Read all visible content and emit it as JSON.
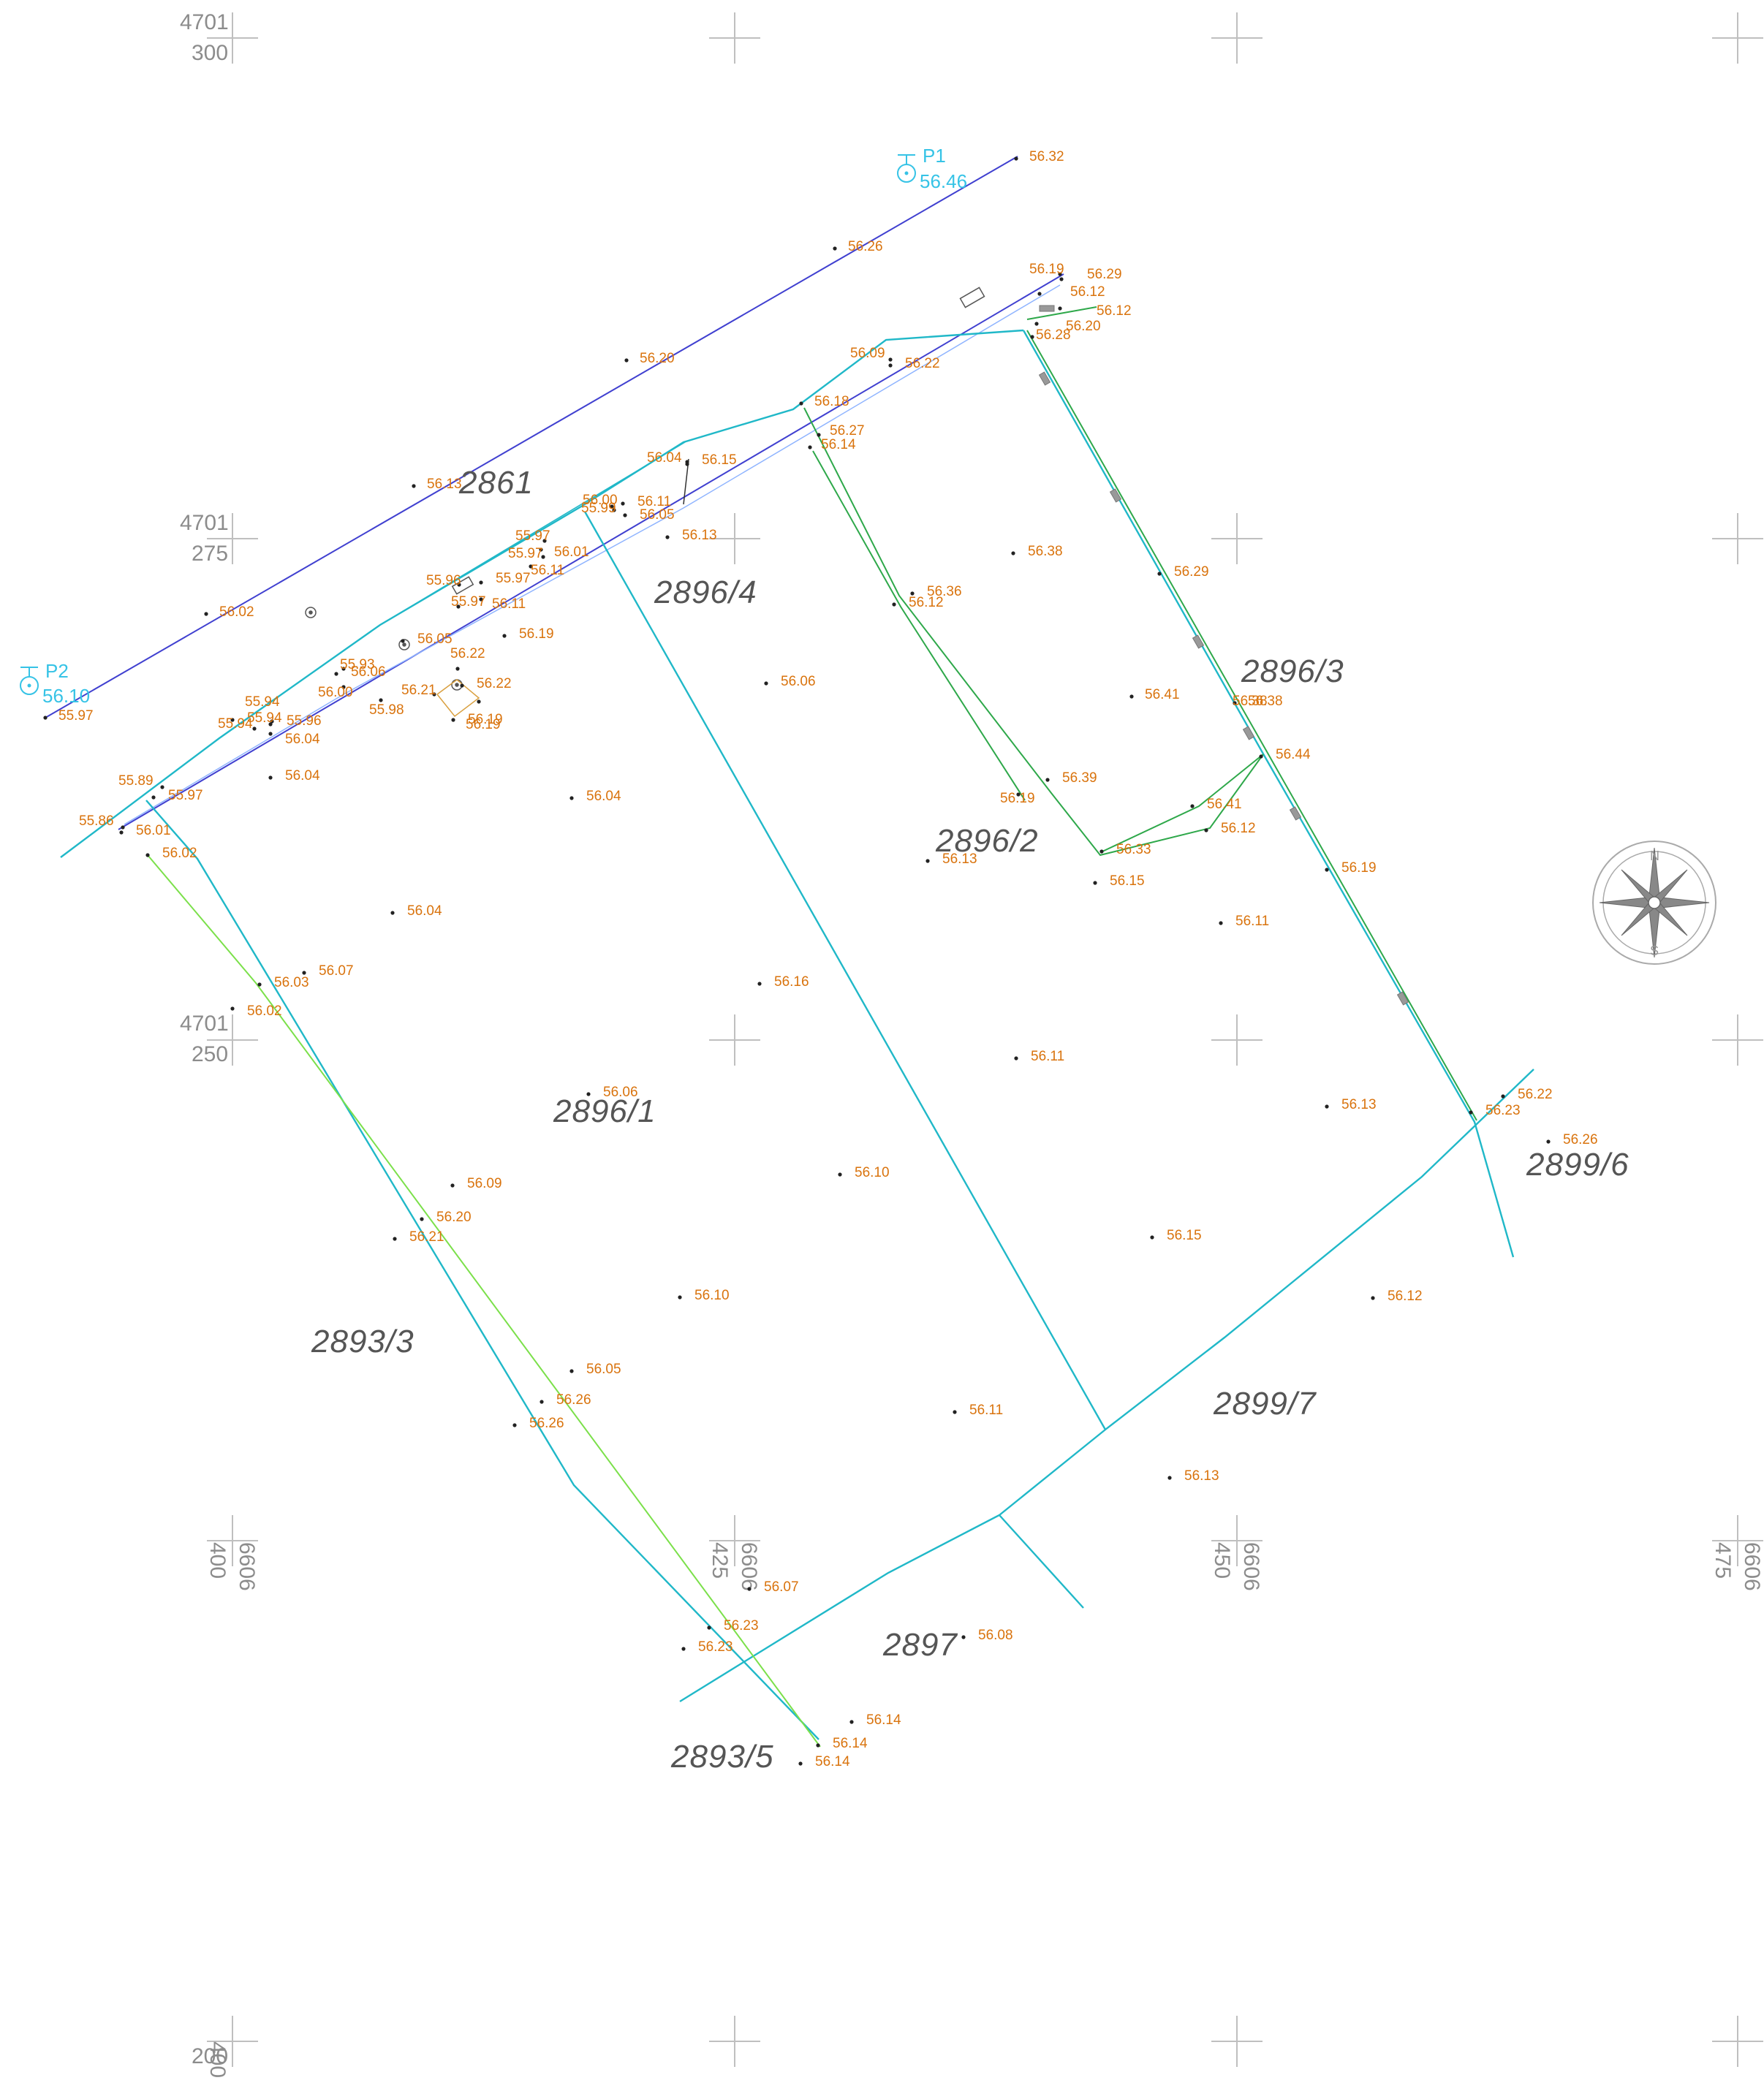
{
  "grid": {
    "y_labels": [
      {
        "top": "4701",
        "bottom": "300"
      },
      {
        "top": "4701",
        "bottom": "275"
      },
      {
        "top": "4701",
        "bottom": "250"
      },
      {
        "top": "",
        "bottom": "200"
      }
    ],
    "x_labels": [
      {
        "a": "400",
        "b": "6606"
      },
      {
        "a": "425",
        "b": "6606"
      },
      {
        "a": "450",
        "b": "6606"
      },
      {
        "a": "475",
        "b": "6606"
      }
    ]
  },
  "benchmarks": [
    {
      "name": "P1",
      "value": "56.46"
    },
    {
      "name": "P2",
      "value": "56.10"
    }
  ],
  "parcels": [
    "2861",
    "2896/4",
    "2896/3",
    "2896/2",
    "2896/1",
    "2893/3",
    "2899/7",
    "2897",
    "2899/6",
    "2893/5"
  ],
  "elevations": [
    "56.32",
    "56.26",
    "56.20",
    "56.13",
    "56.02",
    "55.97",
    "56.19",
    "56.29",
    "56.12",
    "56.12",
    "56.20",
    "56.28",
    "56.09",
    "56.22",
    "56.18",
    "56.27",
    "56.14",
    "56.04",
    "56.15",
    "56.00",
    "55.99",
    "56.11",
    "56.05",
    "56.13",
    "55.97",
    "55.97",
    "56.01",
    "56.11",
    "55.96",
    "55.97",
    "56.11",
    "55.97",
    "56.05",
    "56.19",
    "56.38",
    "56.38",
    "56.36",
    "56.12",
    "56.29",
    "56.06",
    "56.41",
    "56.38",
    "55.94",
    "55.93",
    "56.06",
    "56.00",
    "56.22",
    "56.21",
    "56.22",
    "56.19",
    "55.98",
    "56.19",
    "55.94",
    "55.94",
    "55.96",
    "56.04",
    "56.44",
    "56.39",
    "56.19",
    "56.41",
    "56.12",
    "55.89",
    "55.97",
    "56.04",
    "56.04",
    "55.86",
    "56.01",
    "56.02",
    "56.13",
    "56.33",
    "56.15",
    "56.19",
    "56.04",
    "56.11",
    "56.07",
    "56.03",
    "56.02",
    "56.16",
    "56.11",
    "56.06",
    "56.13",
    "56.22",
    "56.23",
    "56.26",
    "56.10",
    "56.09",
    "56.20",
    "56.21",
    "56.15",
    "56.12",
    "56.10",
    "56.05",
    "56.26",
    "56.26",
    "56.11",
    "56.13",
    "56.07",
    "56.08",
    "56.23",
    "56.23",
    "56.14",
    "56.14",
    "56.14"
  ],
  "compass": {
    "n": "N",
    "s": "S"
  },
  "colors": {
    "boundary": "#20b8c8",
    "road_edge": "#4040d0",
    "fence": "#2ea84a",
    "lime_line": "#7be04a",
    "elevation_text": "#d9730d",
    "benchmark": "#36c3e6",
    "grid": "#bfbfbf"
  }
}
